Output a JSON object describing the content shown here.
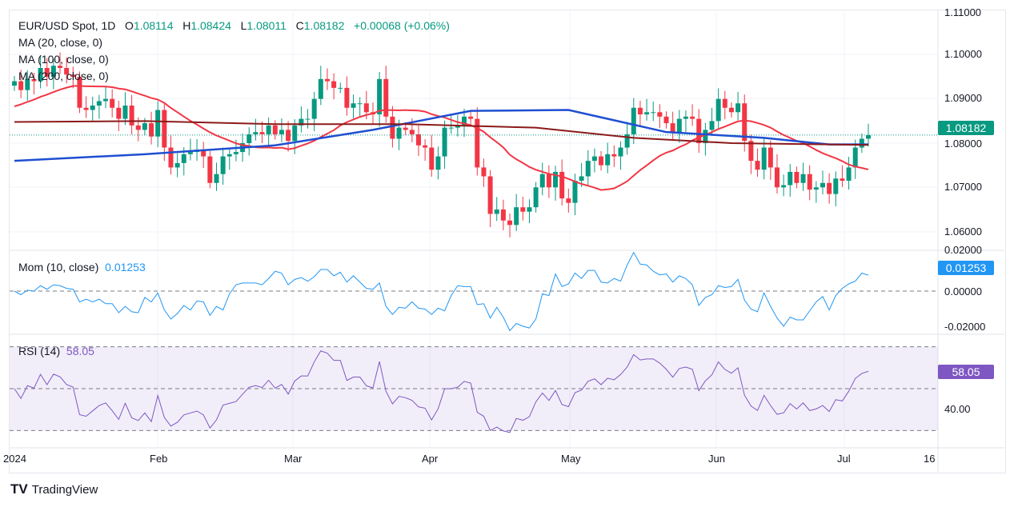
{
  "header": {
    "symbol": "EUR/USD Spot, 1D",
    "o_label": "O",
    "o": "1.08114",
    "h_label": "H",
    "h": "1.08424",
    "l_label": "L",
    "l": "1.08011",
    "c_label": "C",
    "c": "1.08182",
    "change": "+0.00068 (+0.06%)"
  },
  "indicators": {
    "ma20": "MA (20, close, 0)",
    "ma100": "MA (100, close, 0)",
    "ma200": "MA (200, close, 0)",
    "mom": "Mom (10, close)",
    "mom_value": "0.01253",
    "rsi": "RSI (14)",
    "rsi_value": "58.05"
  },
  "tags": {
    "price": "1.08182",
    "mom": "0.01253",
    "rsi": "58.05"
  },
  "colors": {
    "up": "#089981",
    "down": "#f23645",
    "ma20": "#f23645",
    "ma100": "#1e4fd1",
    "ma200": "#8b1a1a",
    "mom": "#2196f3",
    "rsi": "#7e57c2"
  },
  "brand": "TradingView",
  "chart_data": {
    "type": "candlestick",
    "price_axis": {
      "ticks": [
        "1.11000",
        "1.10000",
        "1.09000",
        "1.08000",
        "1.07000",
        "1.06000"
      ],
      "range": [
        1.0555,
        1.1085
      ]
    },
    "mom_axis": {
      "ticks": [
        "0.02000",
        "0.00000",
        "-0.02000"
      ]
    },
    "rsi_axis": {
      "ticks": [
        "40.00"
      ],
      "bands": [
        30,
        50,
        70
      ]
    },
    "x_labels": [
      "2024",
      "Feb",
      "Mar",
      "Apr",
      "May",
      "Jun",
      "Jul",
      "16"
    ],
    "closes": [
      1.094,
      1.092,
      1.0945,
      1.094,
      1.097,
      1.095,
      1.0975,
      1.097,
      1.0955,
      1.095,
      1.088,
      1.0875,
      1.0885,
      1.0895,
      1.09,
      1.088,
      1.0855,
      1.0885,
      1.084,
      1.083,
      1.0845,
      1.0815,
      1.0875,
      1.079,
      1.0745,
      1.0755,
      1.0775,
      1.078,
      1.0785,
      1.077,
      1.071,
      1.073,
      1.077,
      1.0775,
      1.078,
      1.08,
      1.082,
      1.0825,
      1.082,
      1.084,
      1.082,
      1.083,
      1.0805,
      1.084,
      1.0855,
      1.0855,
      1.09,
      1.0945,
      1.094,
      1.0925,
      1.0925,
      1.088,
      1.089,
      1.089,
      1.087,
      1.0865,
      1.0945,
      1.086,
      1.081,
      1.0835,
      1.083,
      1.082,
      1.0795,
      1.079,
      1.074,
      1.077,
      1.0835,
      1.0835,
      1.084,
      1.086,
      1.0855,
      1.0745,
      1.0725,
      1.064,
      1.065,
      1.0625,
      1.0615,
      1.0655,
      1.0645,
      1.0655,
      1.07,
      1.073,
      1.07,
      1.0735,
      1.0675,
      1.0665,
      1.0715,
      1.0725,
      1.076,
      1.077,
      1.075,
      1.0775,
      1.077,
      1.079,
      1.082,
      1.088,
      1.0865,
      1.087,
      1.087,
      1.086,
      1.0845,
      1.0825,
      1.0855,
      1.086,
      1.0855,
      1.08,
      1.083,
      1.085,
      1.09,
      1.088,
      1.087,
      1.089,
      1.0805,
      1.076,
      1.074,
      1.079,
      1.0745,
      1.07,
      1.0705,
      1.0735,
      1.071,
      1.073,
      1.0695,
      1.07,
      1.071,
      1.0685,
      1.072,
      1.0715,
      1.0745,
      1.079,
      1.081,
      1.0818
    ],
    "ma100_points": [
      [
        0,
        1.076
      ],
      [
        20,
        1.0775
      ],
      [
        40,
        1.0795
      ],
      [
        55,
        1.083
      ],
      [
        70,
        1.0873
      ],
      [
        85,
        1.0875
      ],
      [
        100,
        1.0825
      ],
      [
        115,
        1.0812
      ],
      [
        125,
        1.0797
      ],
      [
        131,
        1.0797
      ]
    ],
    "ma200_points": [
      [
        0,
        1.0848
      ],
      [
        20,
        1.085
      ],
      [
        40,
        1.0843
      ],
      [
        60,
        1.0843
      ],
      [
        80,
        1.0835
      ],
      [
        95,
        1.0812
      ],
      [
        110,
        1.08
      ],
      [
        131,
        1.0796
      ]
    ]
  }
}
